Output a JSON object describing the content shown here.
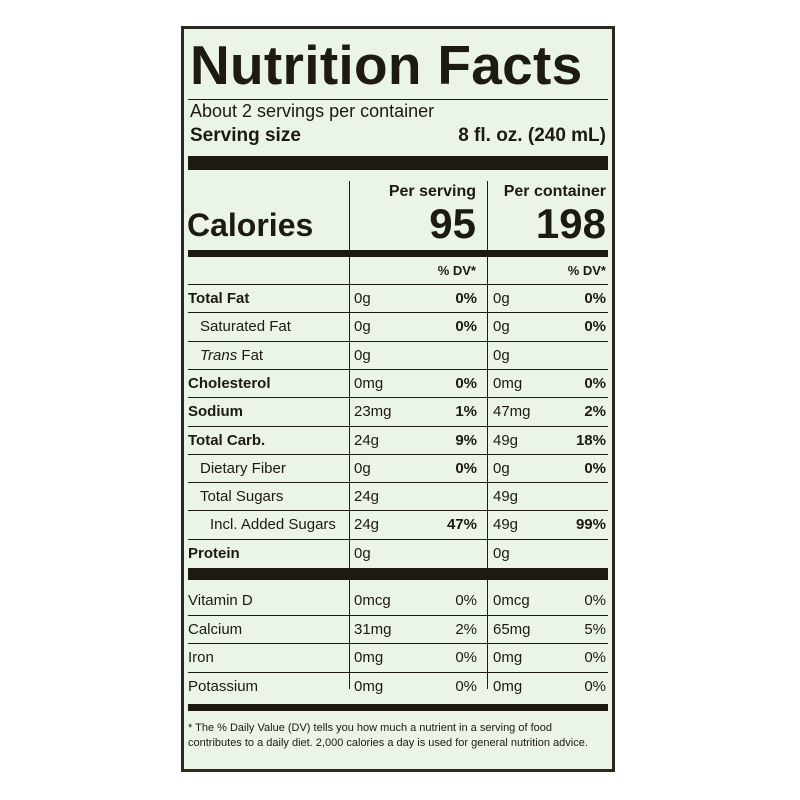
{
  "label": {
    "title": "Nutrition Facts",
    "servings": "About 2 servings per container",
    "serving_size_label": "Serving size",
    "serving_size_value": "8 fl. oz. (240 mL)",
    "calories_label": "Calories",
    "per_serving_header": "Per serving",
    "per_container_header": "Per container",
    "calories_per_serving": "95",
    "calories_per_container": "198",
    "dv_header": "% DV*",
    "nutrients": [
      {
        "name": "Total Fat",
        "amt1": "0g",
        "dv1": "0%",
        "amt2": "0g",
        "dv2": "0%"
      },
      {
        "name": "Saturated Fat",
        "amt1": "0g",
        "dv1": "0%",
        "amt2": "0g",
        "dv2": "0%"
      },
      {
        "name_italic": "Trans",
        "name": " Fat",
        "amt1": "0g",
        "dv1": "",
        "amt2": "0g",
        "dv2": ""
      },
      {
        "name": "Cholesterol",
        "amt1": "0mg",
        "dv1": "0%",
        "amt2": "0mg",
        "dv2": "0%"
      },
      {
        "name": "Sodium",
        "amt1": "23mg",
        "dv1": "1%",
        "amt2": "47mg",
        "dv2": "2%"
      },
      {
        "name": "Total Carb.",
        "amt1": "24g",
        "dv1": "9%",
        "amt2": "49g",
        "dv2": "18%"
      },
      {
        "name": "Dietary Fiber",
        "amt1": "0g",
        "dv1": "0%",
        "amt2": "0g",
        "dv2": "0%"
      },
      {
        "name": "Total Sugars",
        "amt1": "24g",
        "dv1": "",
        "amt2": "49g",
        "dv2": ""
      },
      {
        "name": "Incl. Added Sugars",
        "amt1": "24g",
        "dv1": "47%",
        "amt2": "49g",
        "dv2": "99%"
      },
      {
        "name": "Protein",
        "amt1": "0g",
        "dv1": "",
        "amt2": "0g",
        "dv2": ""
      }
    ],
    "vitamins": [
      {
        "name": "Vitamin D",
        "amt1": "0mcg",
        "dv1": "0%",
        "amt2": "0mcg",
        "dv2": "0%"
      },
      {
        "name": "Calcium",
        "amt1": "31mg",
        "dv1": "2%",
        "amt2": "65mg",
        "dv2": "5%"
      },
      {
        "name": "Iron",
        "amt1": "0mg",
        "dv1": "0%",
        "amt2": "0mg",
        "dv2": "0%"
      },
      {
        "name": "Potassium",
        "amt1": "0mg",
        "dv1": "0%",
        "amt2": "0mg",
        "dv2": "0%"
      }
    ],
    "footnote": "* The % Daily Value (DV) tells you how much a nutrient in a serving of food contributes to a daily diet. 2,000 calories a day is used for general nutrition advice."
  },
  "colors": {
    "background": "#eaf4e7",
    "ink": "#1d1a12"
  }
}
